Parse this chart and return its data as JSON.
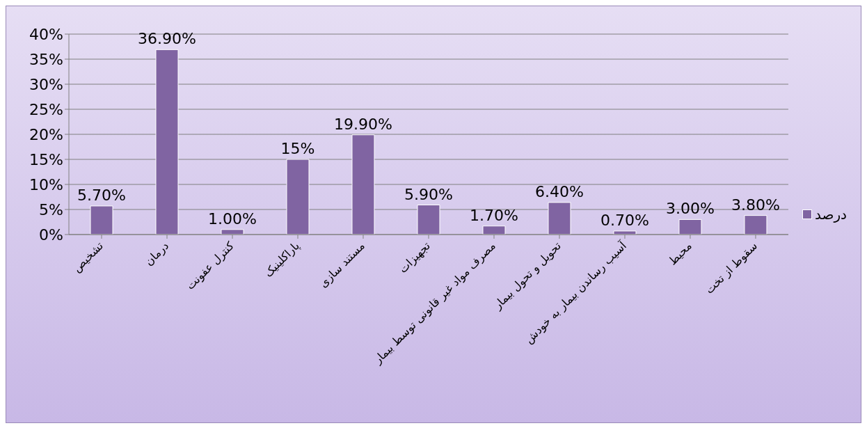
{
  "chart_data": {
    "type": "bar",
    "categories": [
      "تشخیص",
      "درمان",
      "کنترل عفونت",
      "پاراکلینیک",
      "مستند سازی",
      "تجهیزات",
      "مصرف مواد غیر قانونی توسط بیمار",
      "تحویل و تحول بیمار",
      "آسیب رساندن بیمار به خودش",
      "محیط",
      "سقوط از تخت"
    ],
    "series": [
      {
        "name": "درصد",
        "color": "#8064a2",
        "values": [
          5.7,
          36.9,
          1.0,
          15,
          19.9,
          5.9,
          1.7,
          6.4,
          0.7,
          3.0,
          3.8
        ],
        "value_labels": [
          "5.70%",
          "36.90%",
          "1.00%",
          "15%",
          "19.90%",
          "5.90%",
          "1.70%",
          "6.40%",
          "0.70%",
          "3.00%",
          "3.80%"
        ]
      }
    ],
    "ylim": [
      0,
      40
    ],
    "yticks": [
      {
        "value": 0,
        "label": "0%"
      },
      {
        "value": 5,
        "label": "5%"
      },
      {
        "value": 10,
        "label": "10%"
      },
      {
        "value": 15,
        "label": "15%"
      },
      {
        "value": 20,
        "label": "20%"
      },
      {
        "value": 25,
        "label": "25%"
      },
      {
        "value": 30,
        "label": "30%"
      },
      {
        "value": 35,
        "label": "35%"
      },
      {
        "value": 40,
        "label": "40%"
      }
    ],
    "grid": "y",
    "legend": "right"
  }
}
